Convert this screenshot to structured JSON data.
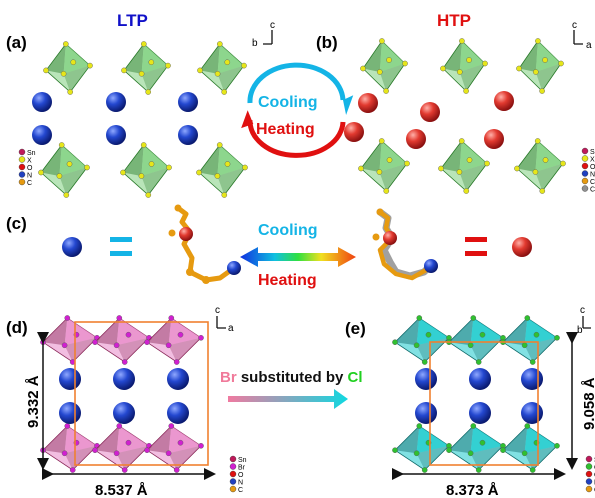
{
  "panels": {
    "a": {
      "label": "(a)",
      "title": "LTP",
      "axis_v": "c",
      "axis_h": "b"
    },
    "b": {
      "label": "(b)",
      "title": "HTP",
      "axis_v": "c",
      "axis_h": "a"
    },
    "c": {
      "label": "(c)",
      "cooling": "Cooling",
      "heating": "Heating"
    },
    "d": {
      "label": "(d)",
      "axis_v": "c",
      "axis_h": "a",
      "dim_v": "9.332 Å",
      "dim_h": "8.537 Å"
    },
    "e": {
      "label": "(e)",
      "axis_v": "c",
      "axis_h": "b",
      "dim_v": "9.058 Å",
      "dim_h": "8.373 Å"
    }
  },
  "cycle": {
    "cooling": "Cooling",
    "heating": "Heating"
  },
  "substitution": {
    "from": "Br",
    "middle": " substituted by ",
    "to": "Cl"
  },
  "legends": {
    "a": [
      "Sn",
      "X",
      "O",
      "N",
      "C"
    ],
    "b": [
      "Sn",
      "X",
      "O",
      "N",
      "C",
      "C"
    ],
    "d": [
      "Sn",
      "Br",
      "O",
      "N",
      "C"
    ],
    "e": [
      "Sn",
      "Cl",
      "O",
      "N",
      "C"
    ]
  },
  "colors": {
    "title_ltp": "#1010c8",
    "title_htp": "#e01010",
    "cooling": "#14b4e6",
    "heating": "#e01010",
    "cation_ltp": "#1f3fc0",
    "cation_htp": "#e03030",
    "octa_green": "#7fd07f",
    "octa_pink": "#e889c8",
    "octa_cyan": "#19c9cc",
    "halide_yellow": "#e6e61a",
    "halide_magenta": "#d020d0",
    "halide_green": "#30c030",
    "carbon": "#e69a10",
    "oxygen": "#e01010",
    "nitrogen": "#2040c0",
    "cell_box": "#f08030",
    "br_text": "#f07a9a",
    "cl_text": "#20d020"
  },
  "legend_colors": {
    "a": [
      "#c0185a",
      "#e6e61a",
      "#e01010",
      "#2040c0",
      "#e69a10"
    ],
    "b": [
      "#c0185a",
      "#e6e61a",
      "#e01010",
      "#2040c0",
      "#e69a10",
      "#909090"
    ],
    "d": [
      "#c0185a",
      "#d020d0",
      "#e01010",
      "#2040c0",
      "#e69a10"
    ],
    "e": [
      "#c0185a",
      "#30c030",
      "#e01010",
      "#2040c0",
      "#e69a10"
    ]
  }
}
